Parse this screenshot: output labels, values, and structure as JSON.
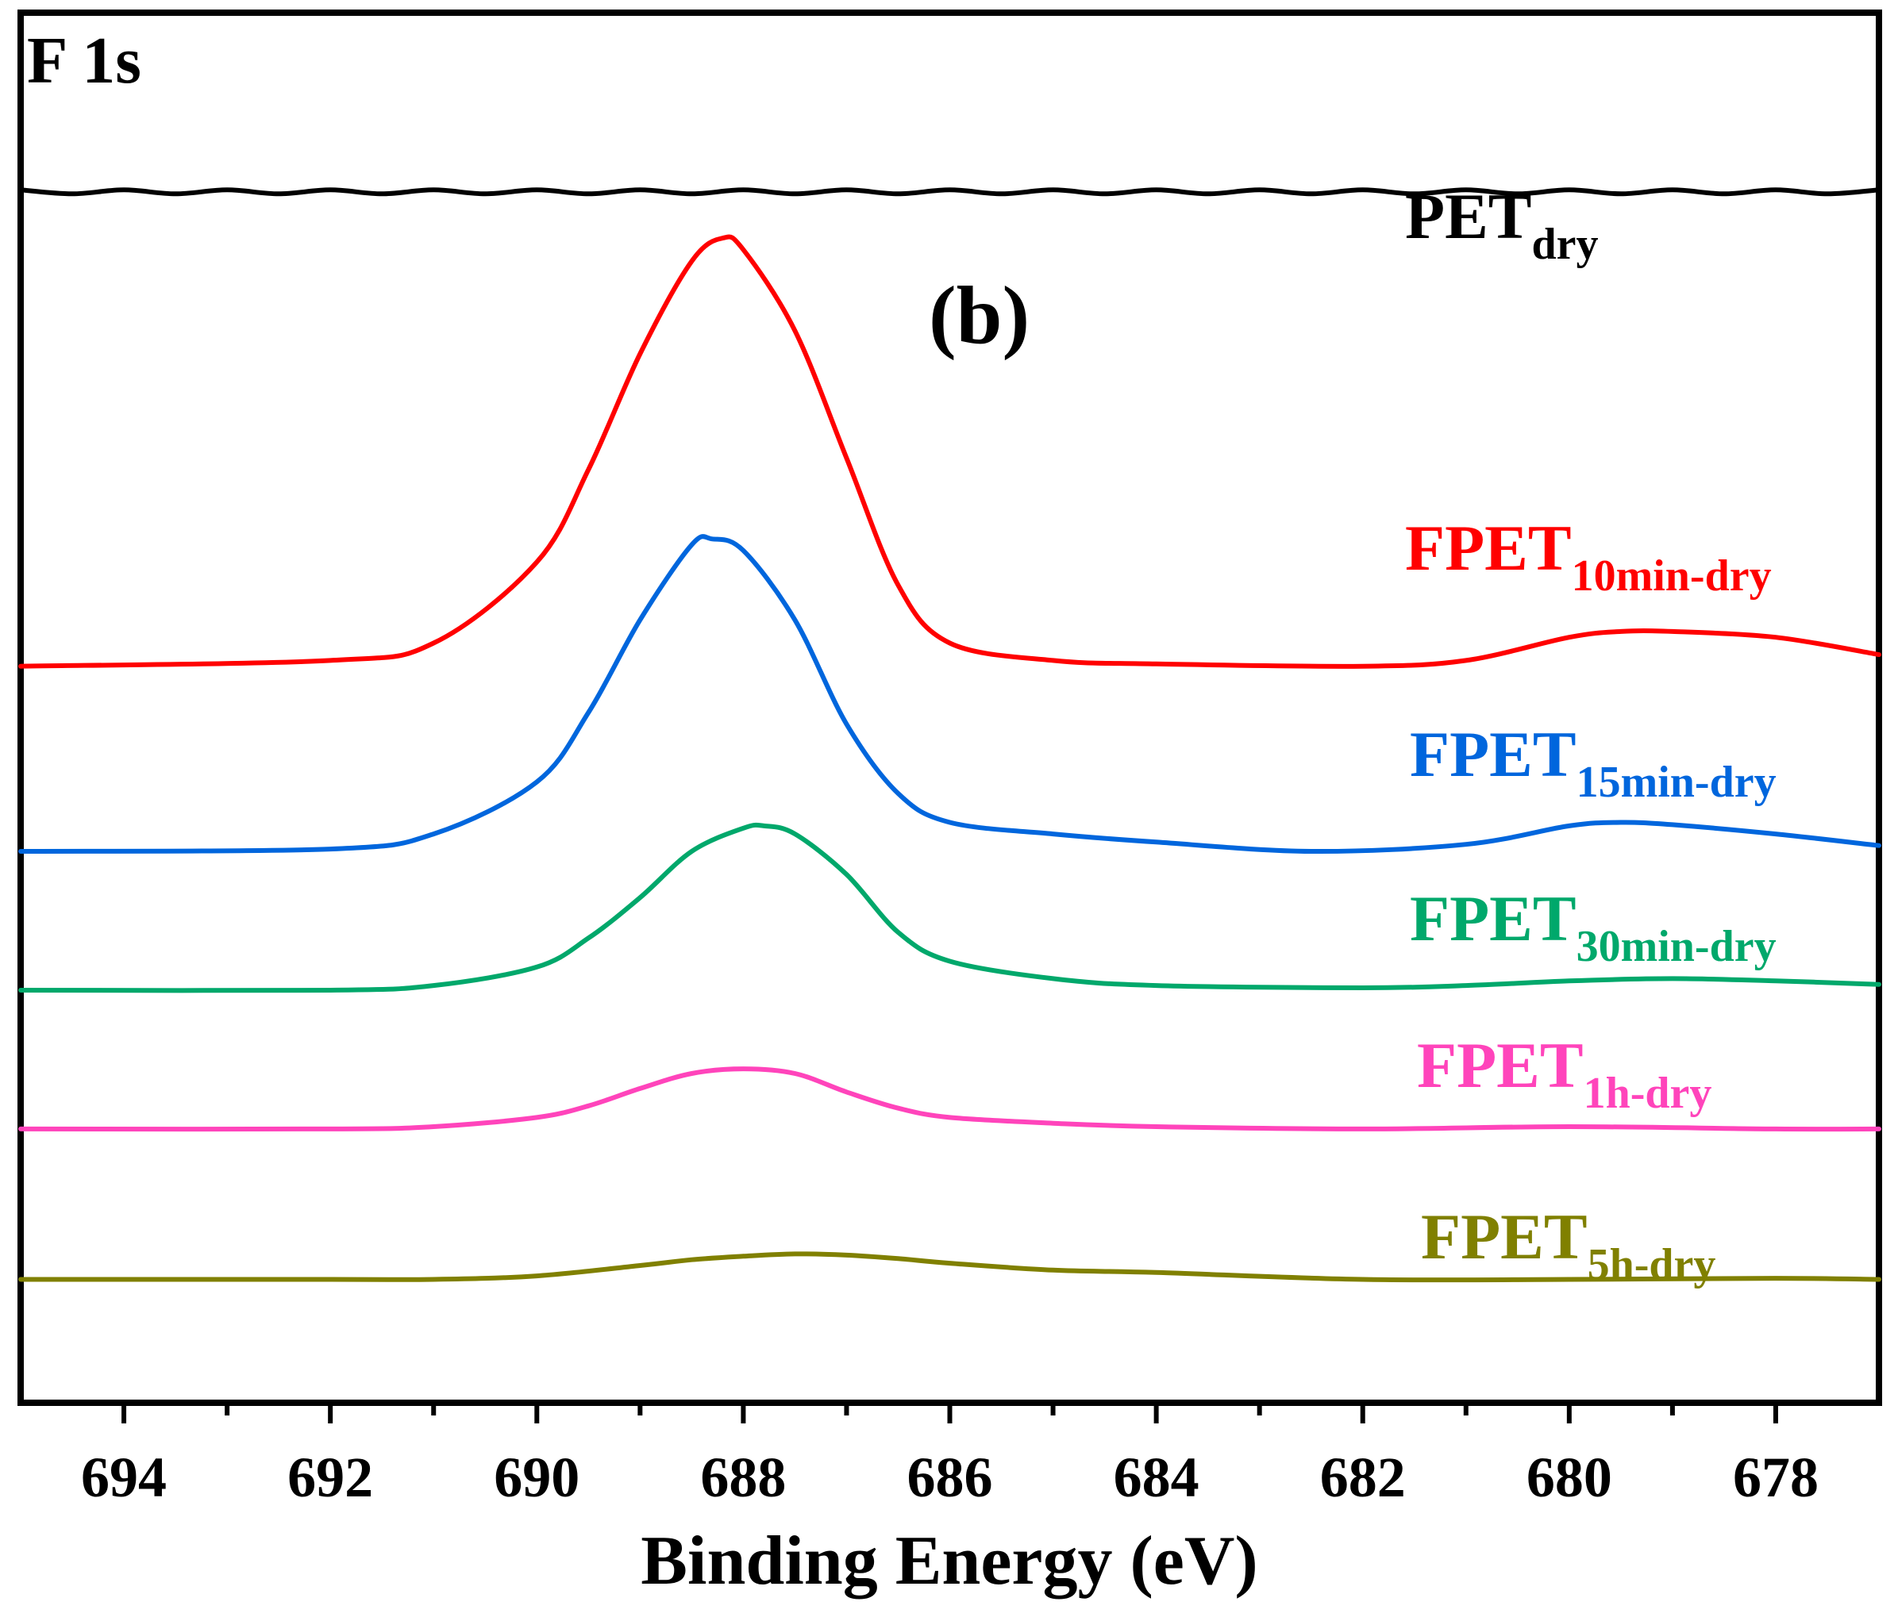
{
  "chart_data": {
    "type": "line",
    "title": "F 1s",
    "panel_label": "(b)",
    "xlabel": "Binding Energy (eV)",
    "ylabel": "",
    "xlim": [
      695,
      677
    ],
    "x_reversed": true,
    "xticks": [
      694,
      692,
      690,
      688,
      686,
      684,
      682,
      680,
      678
    ],
    "ylim": [
      0,
      11
    ],
    "grid": false,
    "legend_placement": "right, beside each trace",
    "series": [
      {
        "name": "PET",
        "name_sub": "dry",
        "color": "#000000",
        "x": [
          695,
          677
        ],
        "y": [
          10.0,
          10.0
        ]
      },
      {
        "name": "FPET",
        "name_sub": "10min-dry",
        "color": "#ff0000",
        "x": [
          695,
          692,
          691,
          690,
          689.5,
          689,
          688.5,
          688.2,
          688,
          687.5,
          687,
          686.5,
          686,
          685,
          684,
          682,
          681,
          680,
          679.5,
          679,
          678,
          677
        ],
        "y": [
          5.9,
          5.95,
          6.1,
          6.8,
          7.6,
          8.6,
          9.4,
          9.6,
          9.5,
          8.8,
          7.7,
          6.6,
          6.1,
          5.95,
          5.92,
          5.9,
          5.95,
          6.15,
          6.2,
          6.2,
          6.15,
          6.0
        ]
      },
      {
        "name": "FPET",
        "name_sub": "15min-dry",
        "color": "#0066dd",
        "x": [
          695,
          692,
          691,
          690,
          689.5,
          689,
          688.5,
          688.3,
          688,
          687.5,
          687,
          686.5,
          686,
          685,
          684,
          682.5,
          681,
          680,
          679.5,
          679,
          678,
          677
        ],
        "y": [
          4.3,
          4.32,
          4.45,
          4.9,
          5.5,
          6.3,
          6.95,
          7.0,
          6.9,
          6.3,
          5.4,
          4.8,
          4.55,
          4.45,
          4.38,
          4.3,
          4.36,
          4.52,
          4.55,
          4.53,
          4.45,
          4.35
        ]
      },
      {
        "name": "FPET",
        "name_sub": "30min-dry",
        "color": "#00a86b",
        "x": [
          695,
          692,
          691,
          690,
          689.5,
          689,
          688.5,
          688,
          687.8,
          687.5,
          687,
          686.5,
          686,
          685,
          684,
          682,
          681,
          680,
          679,
          678,
          677
        ],
        "y": [
          3.1,
          3.1,
          3.14,
          3.3,
          3.55,
          3.9,
          4.3,
          4.5,
          4.52,
          4.45,
          4.1,
          3.6,
          3.35,
          3.2,
          3.14,
          3.12,
          3.14,
          3.18,
          3.2,
          3.18,
          3.15
        ]
      },
      {
        "name": "FPET",
        "name_sub": "1h-dry",
        "color": "#ff44bb",
        "x": [
          695,
          692,
          691,
          690,
          689.5,
          689,
          688.5,
          688,
          687.5,
          687,
          686.5,
          686,
          685,
          684,
          682,
          680,
          678,
          677
        ],
        "y": [
          1.9,
          1.9,
          1.92,
          2.0,
          2.1,
          2.25,
          2.38,
          2.42,
          2.38,
          2.22,
          2.08,
          2.0,
          1.95,
          1.92,
          1.9,
          1.92,
          1.9,
          1.9
        ]
      },
      {
        "name": "FPET",
        "name_sub": "5h-dry",
        "color": "#808000",
        "x": [
          695,
          692,
          691,
          690,
          689,
          688.5,
          688,
          687.5,
          687,
          686.5,
          686,
          685,
          684,
          682,
          680,
          678,
          677
        ],
        "y": [
          0.6,
          0.6,
          0.6,
          0.63,
          0.72,
          0.77,
          0.8,
          0.82,
          0.81,
          0.78,
          0.74,
          0.68,
          0.66,
          0.6,
          0.6,
          0.61,
          0.6
        ]
      }
    ]
  }
}
